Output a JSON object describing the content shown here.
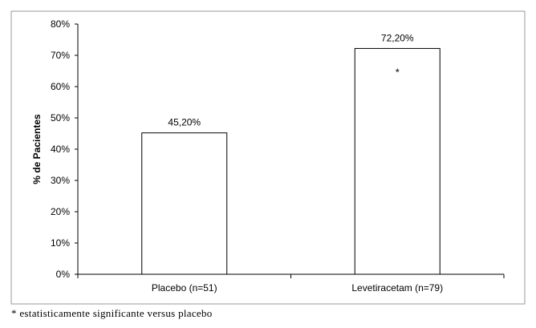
{
  "chart_data": {
    "type": "bar",
    "categories": [
      "Placebo (n=51)",
      "Levetiracetam (n=79)"
    ],
    "values": [
      45.2,
      72.2
    ],
    "data_labels": [
      "45,20%",
      "72,20%"
    ],
    "annotations": [
      "",
      "*"
    ],
    "ylabel": "% de Pacientes",
    "ylim": [
      0,
      80
    ],
    "yticks": [
      "0%",
      "10%",
      "20%",
      "30%",
      "40%",
      "50%",
      "60%",
      "70%",
      "80%"
    ],
    "grid": false,
    "bar_fill": "#ffffff",
    "bar_stroke": "#000000",
    "frame_color": "#9a9a9a"
  },
  "footnote": "* estatisticamente significante versus placebo"
}
